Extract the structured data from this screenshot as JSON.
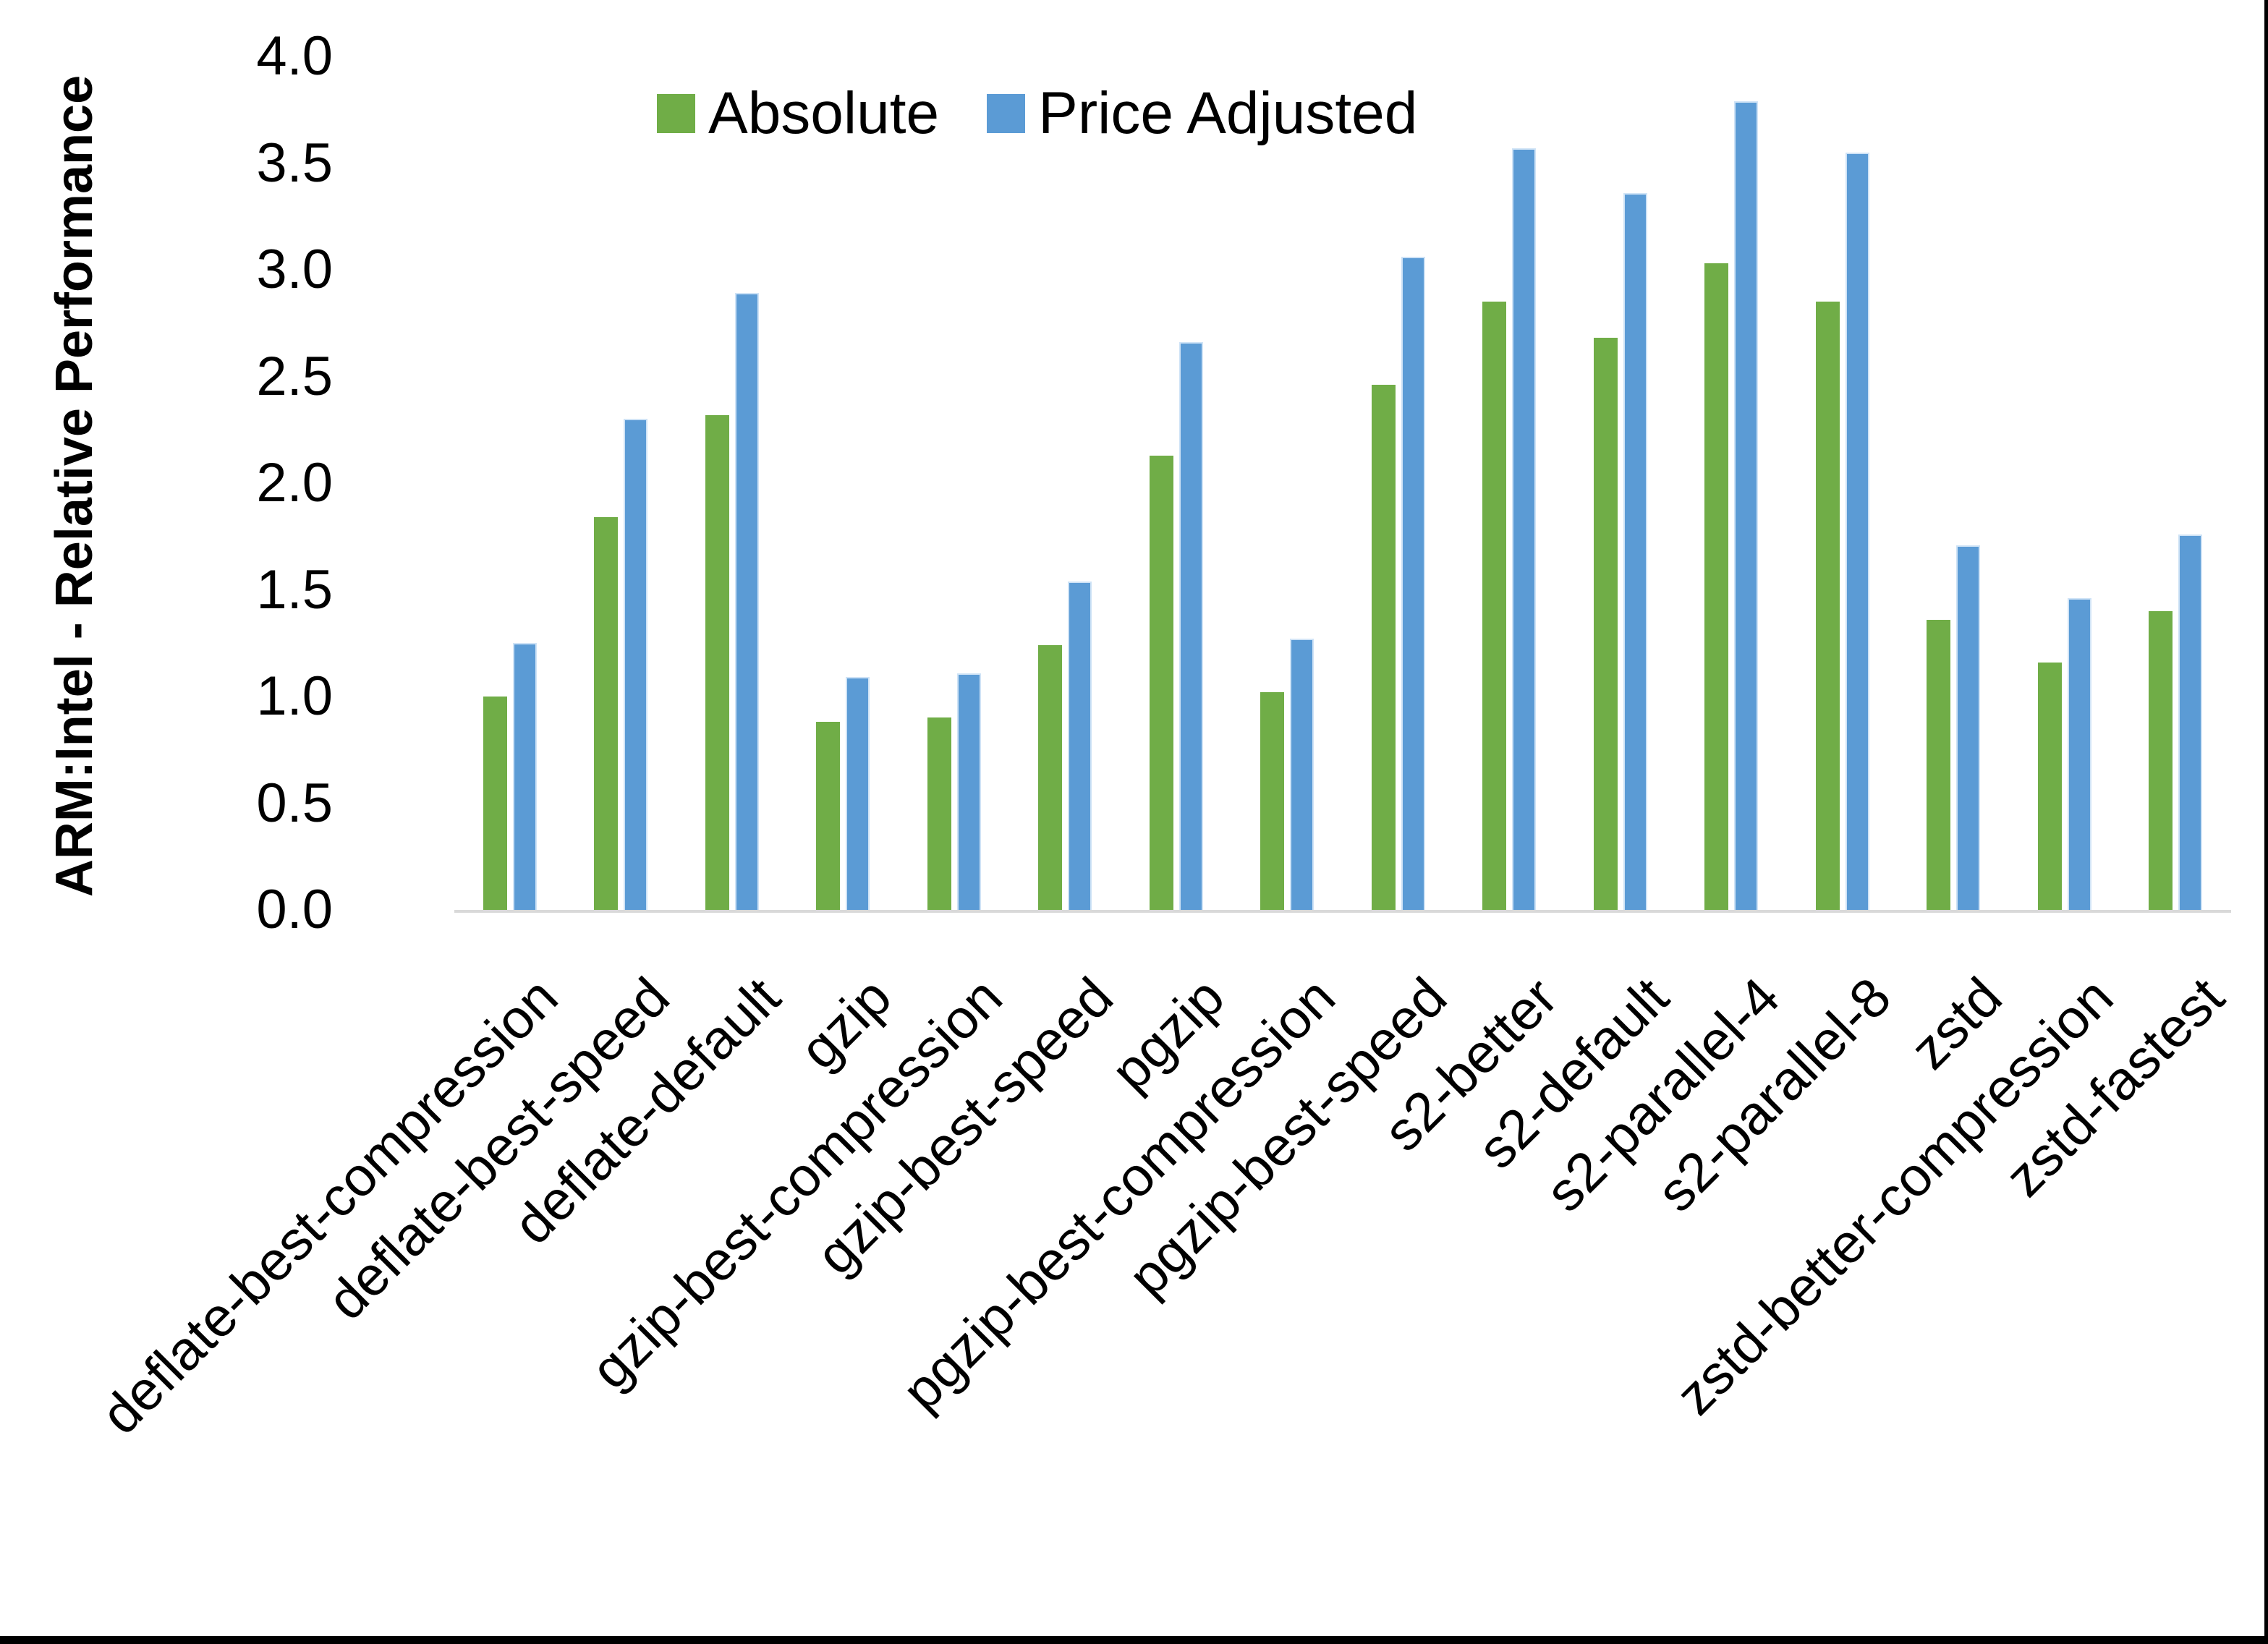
{
  "page": {
    "background": "#ffffff",
    "frame_color": "#000000"
  },
  "chart_data": {
    "type": "bar",
    "title": "",
    "xlabel": "",
    "ylabel": "ARM:Intel - Relative Performance",
    "ylim": [
      0.0,
      4.0
    ],
    "ytick_step": 0.5,
    "yticks": [
      "4.0",
      "3.5",
      "3.0",
      "2.5",
      "2.0",
      "1.5",
      "1.0",
      "0.5",
      "0.0"
    ],
    "grid": false,
    "legend_position": "top-center",
    "axis_line_color": "#d9d9d9",
    "categories": [
      "deflate-best-compression",
      "deflate-best-speed",
      "deflate-default",
      "gzip",
      "gzip-best-compression",
      "gzip-best-speed",
      "pgzip",
      "pgzip-best-compression",
      "pgzip-best-speed",
      "s2-better",
      "s2-default",
      "s2-parallel-4",
      "s2-parallel-8",
      "zstd",
      "zstd-better-compression",
      "zstd-fastest"
    ],
    "series": [
      {
        "name": "Absolute",
        "color": "#70AD47",
        "values": [
          1.0,
          1.84,
          2.32,
          0.88,
          0.9,
          1.24,
          2.13,
          1.02,
          2.46,
          2.85,
          2.68,
          3.03,
          2.85,
          1.36,
          1.16,
          1.4
        ]
      },
      {
        "name": "Price Adjusted",
        "color": "#5B9BD5",
        "values": [
          1.25,
          2.3,
          2.89,
          1.09,
          1.11,
          1.54,
          2.66,
          1.27,
          3.06,
          3.57,
          3.36,
          3.79,
          3.55,
          1.71,
          1.46,
          1.76
        ]
      }
    ]
  }
}
